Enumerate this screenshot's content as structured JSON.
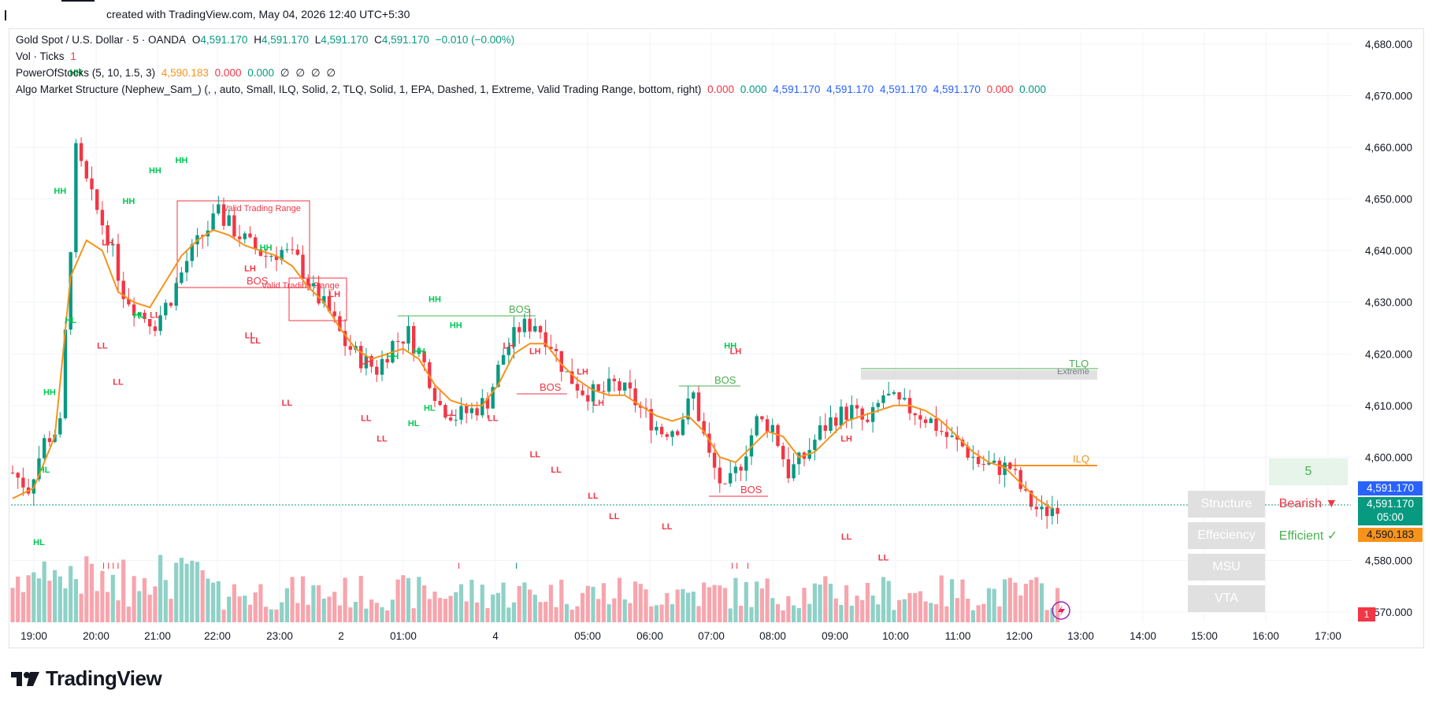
{
  "header": {
    "created_text": "created with TradingView.com, May 04, 2026 12:40 UTC+5:30"
  },
  "legend": {
    "symbol": "Gold Spot / U.S. Dollar · 5 · OANDA",
    "o_label": "O",
    "o_value": "4,591.170",
    "h_label": "H",
    "h_value": "4,591.170",
    "l_label": "L",
    "l_value": "4,591.170",
    "c_label": "C",
    "c_value": "4,591.170",
    "change": "−0.010 (−0.00%)",
    "vol_label": "Vol · Ticks",
    "vol_value": "1",
    "pos_label": "PowerOfStocks (5, 10, 1.5, 3)",
    "pos_values": [
      "4,590.183",
      "0.000",
      "0.000",
      "∅",
      "∅",
      "∅",
      "∅"
    ],
    "ams_label": "Algo Market Structure (Nephew_Sam_) (, , auto, Small, ILQ, Solid, 2, TLQ, Solid, 1, EPA, Dashed, 1, Extreme, Valid Trading Range, bottom, right)",
    "ams_values": [
      "0.000",
      "0.000",
      "4,591.170",
      "4,591.170",
      "4,591.170",
      "4,591.170",
      "0.000",
      "0.000"
    ]
  },
  "price_axis": {
    "labels": [
      "4,680.000",
      "4,670.000",
      "4,660.000",
      "4,650.000",
      "4,640.000",
      "4,630.000",
      "4,620.000",
      "4,610.000",
      "4,600.000",
      "4,580.000",
      "4,570.000"
    ],
    "last_price": "4,591.170",
    "last_price_2": "4,591.170",
    "countdown": "05:00",
    "ma_price": "4,590.183",
    "volume_badge": "1"
  },
  "time_axis": {
    "labels": [
      "19:00",
      "20:00",
      "21:00",
      "22:00",
      "23:00",
      "2",
      "01:00",
      "4",
      "05:00",
      "06:00",
      "07:00",
      "08:00",
      "09:00",
      "10:00",
      "11:00",
      "12:00",
      "13:00",
      "14:00",
      "15:00",
      "16:00",
      "17:00"
    ]
  },
  "structure_table": {
    "count": "5",
    "rows": [
      {
        "label": "Structure",
        "value": "Bearish ▼"
      },
      {
        "label": "Effeciency",
        "value": "Efficient ✓"
      },
      {
        "label": "MSU",
        "value": ""
      },
      {
        "label": "VTA",
        "value": ""
      }
    ]
  },
  "annotations": {
    "vtr1": "Valid Trading Range",
    "vtr2": "Valid Trading Range",
    "tlq": "TLQ",
    "extreme": "Extreme",
    "ilq": "ILQ",
    "bos": "BOS",
    "ticks": [
      "I I I I",
      "I",
      "I",
      "I I",
      "I"
    ]
  },
  "chart_data": {
    "type": "candlestick",
    "title": "Gold Spot / U.S. Dollar · 5 · OANDA",
    "ylim": [
      4568,
      4685
    ],
    "y_ticks": [
      4680,
      4670,
      4660,
      4650,
      4640,
      4630,
      4620,
      4610,
      4600,
      4580,
      4570
    ],
    "grid": true,
    "colors": {
      "up": "#089981",
      "down": "#f23645",
      "ma": "#f7931a",
      "bos_green": "#4caf50",
      "bos_red": "#f23645",
      "vol_up": "#8fd1c7",
      "vol_down": "#f7a5ad"
    },
    "close_anchors": [
      [
        0,
        4597
      ],
      [
        3,
        4594
      ],
      [
        6,
        4603
      ],
      [
        9,
        4606
      ],
      [
        12,
        4659
      ],
      [
        15,
        4650
      ],
      [
        18,
        4643
      ],
      [
        21,
        4632
      ],
      [
        24,
        4628
      ],
      [
        27,
        4626
      ],
      [
        30,
        4631
      ],
      [
        33,
        4638
      ],
      [
        36,
        4643
      ],
      [
        39,
        4647
      ],
      [
        42,
        4644
      ],
      [
        45,
        4641
      ],
      [
        48,
        4639
      ],
      [
        51,
        4640
      ],
      [
        54,
        4638
      ],
      [
        57,
        4632
      ],
      [
        60,
        4628
      ],
      [
        63,
        4622
      ],
      [
        66,
        4619
      ],
      [
        69,
        4617
      ],
      [
        72,
        4622
      ],
      [
        75,
        4624
      ],
      [
        78,
        4618
      ],
      [
        81,
        4610
      ],
      [
        84,
        4608
      ],
      [
        87,
        4609
      ],
      [
        90,
        4611
      ],
      [
        93,
        4620
      ],
      [
        96,
        4625
      ],
      [
        99,
        4626
      ],
      [
        102,
        4622
      ],
      [
        105,
        4616
      ],
      [
        108,
        4613
      ],
      [
        111,
        4612
      ],
      [
        114,
        4614
      ],
      [
        117,
        4612
      ],
      [
        120,
        4608
      ],
      [
        123,
        4605
      ],
      [
        126,
        4606
      ],
      [
        129,
        4612
      ],
      [
        132,
        4600
      ],
      [
        135,
        4593
      ],
      [
        138,
        4599
      ],
      [
        141,
        4607
      ],
      [
        144,
        4606
      ],
      [
        147,
        4597
      ],
      [
        150,
        4600
      ],
      [
        153,
        4605
      ],
      [
        156,
        4608
      ],
      [
        159,
        4609
      ],
      [
        162,
        4606
      ],
      [
        165,
        4612
      ],
      [
        168,
        4610
      ],
      [
        171,
        4609
      ],
      [
        174,
        4607
      ],
      [
        177,
        4604
      ],
      [
        180,
        4602
      ],
      [
        183,
        4599
      ],
      [
        186,
        4598
      ],
      [
        189,
        4598
      ],
      [
        192,
        4592
      ],
      [
        195,
        4589
      ],
      [
        198,
        4591
      ]
    ],
    "ma_anchors": [
      [
        0,
        4592
      ],
      [
        4,
        4594
      ],
      [
        8,
        4604
      ],
      [
        11,
        4635
      ],
      [
        14,
        4642
      ],
      [
        17,
        4640
      ],
      [
        20,
        4632
      ],
      [
        23,
        4630
      ],
      [
        26,
        4629
      ],
      [
        29,
        4634
      ],
      [
        32,
        4639
      ],
      [
        35,
        4642
      ],
      [
        38,
        4644
      ],
      [
        41,
        4643
      ],
      [
        44,
        4641
      ],
      [
        47,
        4640
      ],
      [
        50,
        4639
      ],
      [
        53,
        4637
      ],
      [
        56,
        4633
      ],
      [
        59,
        4630
      ],
      [
        62,
        4625
      ],
      [
        65,
        4621
      ],
      [
        68,
        4619
      ],
      [
        71,
        4620
      ],
      [
        74,
        4621
      ],
      [
        77,
        4619
      ],
      [
        80,
        4614
      ],
      [
        83,
        4611
      ],
      [
        86,
        4610
      ],
      [
        89,
        4610
      ],
      [
        92,
        4614
      ],
      [
        95,
        4620
      ],
      [
        98,
        4622
      ],
      [
        101,
        4622
      ],
      [
        104,
        4618
      ],
      [
        107,
        4615
      ],
      [
        110,
        4613
      ],
      [
        113,
        4612
      ],
      [
        116,
        4612
      ],
      [
        119,
        4610
      ],
      [
        122,
        4608
      ],
      [
        125,
        4607
      ],
      [
        128,
        4608
      ],
      [
        131,
        4605
      ],
      [
        134,
        4600
      ],
      [
        137,
        4599
      ],
      [
        140,
        4602
      ],
      [
        143,
        4605
      ],
      [
        146,
        4604
      ],
      [
        149,
        4600
      ],
      [
        152,
        4601
      ],
      [
        155,
        4604
      ],
      [
        158,
        4607
      ],
      [
        161,
        4608
      ],
      [
        164,
        4609
      ],
      [
        167,
        4610
      ],
      [
        170,
        4610
      ],
      [
        173,
        4609
      ],
      [
        176,
        4607
      ],
      [
        179,
        4604
      ],
      [
        182,
        4601
      ],
      [
        185,
        4599
      ],
      [
        188,
        4598
      ],
      [
        191,
        4595
      ],
      [
        194,
        4592
      ],
      [
        197,
        4590
      ]
    ],
    "structure_labels": [
      {
        "text": "HH",
        "i": 12,
        "y": 4674,
        "color": "green"
      },
      {
        "text": "HH",
        "i": 9,
        "y": 4651,
        "color": "green"
      },
      {
        "text": "HH",
        "i": 22,
        "y": 4649,
        "color": "green"
      },
      {
        "text": "HH",
        "i": 27,
        "y": 4655,
        "color": "green"
      },
      {
        "text": "HH",
        "i": 32,
        "y": 4657,
        "color": "green"
      },
      {
        "text": "HH",
        "i": 48,
        "y": 4640,
        "color": "green"
      },
      {
        "text": "HH",
        "i": 80,
        "y": 4630,
        "color": "green"
      },
      {
        "text": "HH",
        "i": 84,
        "y": 4625,
        "color": "green"
      },
      {
        "text": "HH",
        "i": 72,
        "y": 4619,
        "color": "green"
      },
      {
        "text": "HH",
        "i": 77,
        "y": 4620,
        "color": "green"
      },
      {
        "text": "HH",
        "i": 136,
        "y": 4621,
        "color": "green"
      },
      {
        "text": "HH",
        "i": 7,
        "y": 4612,
        "color": "green"
      },
      {
        "text": "HL",
        "i": 24,
        "y": 4627,
        "color": "green"
      },
      {
        "text": "HL",
        "i": 11,
        "y": 4626,
        "color": "green"
      },
      {
        "text": "HL",
        "i": 6,
        "y": 4597,
        "color": "green"
      },
      {
        "text": "HL",
        "i": 5,
        "y": 4583,
        "color": "green"
      },
      {
        "text": "HL",
        "i": 76,
        "y": 4606,
        "color": "green"
      },
      {
        "text": "HL",
        "i": 79,
        "y": 4609,
        "color": "green"
      },
      {
        "text": "LH",
        "i": 18,
        "y": 4641,
        "color": "red"
      },
      {
        "text": "LH",
        "i": 45,
        "y": 4636,
        "color": "red"
      },
      {
        "text": "LH",
        "i": 61,
        "y": 4631,
        "color": "red"
      },
      {
        "text": "LH",
        "i": 67,
        "y": 4618,
        "color": "red"
      },
      {
        "text": "LH",
        "i": 94,
        "y": 4621,
        "color": "red"
      },
      {
        "text": "LH",
        "i": 99,
        "y": 4620,
        "color": "red"
      },
      {
        "text": "LH",
        "i": 108,
        "y": 4616,
        "color": "red"
      },
      {
        "text": "LH",
        "i": 111,
        "y": 4610,
        "color": "red"
      },
      {
        "text": "LH",
        "i": 137,
        "y": 4620,
        "color": "red"
      },
      {
        "text": "LH",
        "i": 158,
        "y": 4603,
        "color": "red"
      },
      {
        "text": "LL",
        "i": 17,
        "y": 4621,
        "color": "red"
      },
      {
        "text": "LL",
        "i": 20,
        "y": 4614,
        "color": "red"
      },
      {
        "text": "LL",
        "i": 27,
        "y": 4627,
        "color": "red"
      },
      {
        "text": "LL",
        "i": 45,
        "y": 4623,
        "color": "red"
      },
      {
        "text": "LL",
        "i": 46,
        "y": 4622,
        "color": "red"
      },
      {
        "text": "LL",
        "i": 52,
        "y": 4610,
        "color": "red"
      },
      {
        "text": "LL",
        "i": 67,
        "y": 4607,
        "color": "red"
      },
      {
        "text": "LL",
        "i": 70,
        "y": 4603,
        "color": "red"
      },
      {
        "text": "LL",
        "i": 83,
        "y": 4608,
        "color": "red"
      },
      {
        "text": "LL",
        "i": 91,
        "y": 4607,
        "color": "red"
      },
      {
        "text": "LL",
        "i": 99,
        "y": 4600,
        "color": "red"
      },
      {
        "text": "LL",
        "i": 103,
        "y": 4597,
        "color": "red"
      },
      {
        "text": "LL",
        "i": 110,
        "y": 4592,
        "color": "red"
      },
      {
        "text": "LL",
        "i": 114,
        "y": 4588,
        "color": "red"
      },
      {
        "text": "LL",
        "i": 124,
        "y": 4586,
        "color": "red"
      },
      {
        "text": "LL",
        "i": 158,
        "y": 4584,
        "color": "red"
      },
      {
        "text": "LL",
        "i": 165,
        "y": 4580,
        "color": "red"
      }
    ]
  }
}
